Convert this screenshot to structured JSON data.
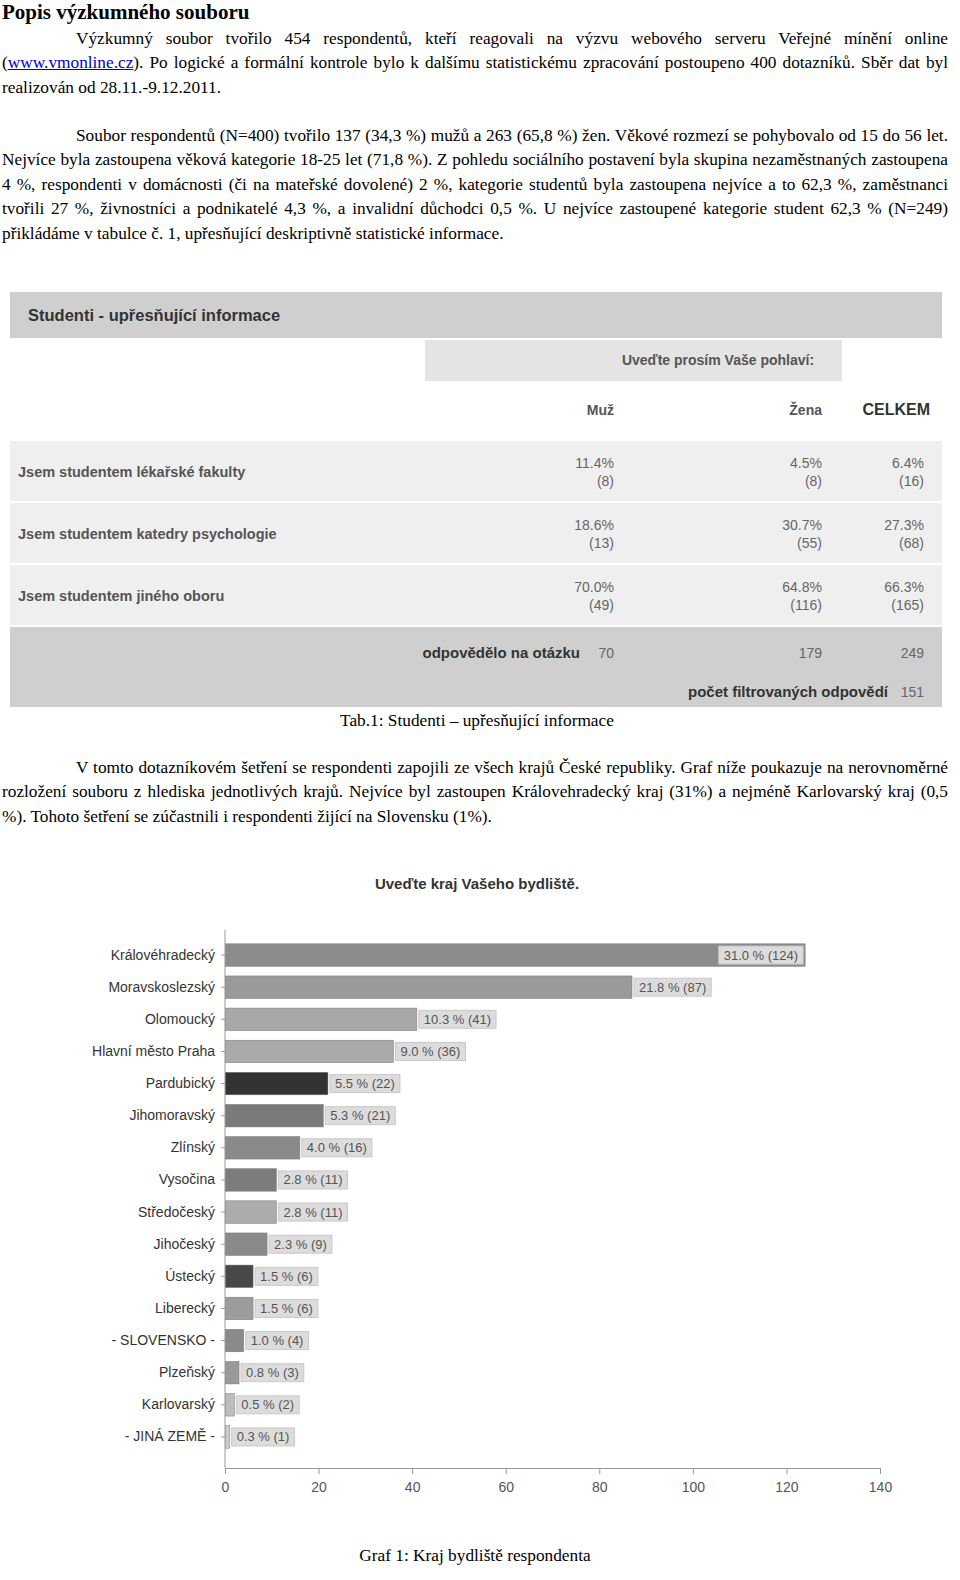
{
  "heading": "Popis výzkumného souboru",
  "paragraph_1": [
    "Výzkumný soubor tvořilo 454 respondentů, kteří reagovali na výzvu webového serveru Veřejné mínění online (",
    "www.vmonline.cz",
    "). Po logické a formální kontrole bylo k dalšímu statistickému zpracování postoupeno 400 dotazníků. Sběr dat byl realizován od 28.11.-9.12.2011."
  ],
  "paragraph_2": "Soubor respondentů (N=400) tvořilo 137 (34,3 %) mužů a 263 (65,8 %) žen. Věkové rozmezí se pohybovalo od 15 do 56 let. Nejvíce byla zastoupena věková kategorie 18-25 let (71,8 %). Z pohledu sociálního postavení byla skupina nezaměstnaných zastoupena 4 %, respondenti v domácnosti (či na mateřské dovolené) 2 %, kategorie studentů byla zastoupena nejvíce a to 62,3 %, zaměstnanci tvořili 27 %, živnostníci a podnikatelé 4,3 %, a invalidní důchodci 0,5 %. U nejvíce zastoupené kategorie student 62,3 % (N=249) přikládáme v tabulce č. 1, upřesňující deskriptivně statistické informace.",
  "table": {
    "title": "Studenti - upřesňující informace",
    "group_header": "Uveďte prosím Vaše pohlaví:",
    "columns": [
      "Muž",
      "Žena",
      "CELKEM"
    ],
    "rows": [
      {
        "label": "Jsem studentem lékařské fakulty",
        "cells": [
          [
            "11.4%",
            "(8)"
          ],
          [
            "4.5%",
            "(8)"
          ],
          [
            "6.4%",
            "(16)"
          ]
        ]
      },
      {
        "label": "Jsem studentem katedry psychologie",
        "cells": [
          [
            "18.6%",
            "(13)"
          ],
          [
            "30.7%",
            "(55)"
          ],
          [
            "27.3%",
            "(68)"
          ]
        ]
      },
      {
        "label": "Jsem studentem jiného oboru",
        "cells": [
          [
            "70.0%",
            "(49)"
          ],
          [
            "64.8%",
            "(116)"
          ],
          [
            "66.3%",
            "(165)"
          ]
        ]
      }
    ],
    "answered": {
      "label": "odpovědělo na otázku",
      "values": [
        "70",
        "179",
        "249"
      ]
    },
    "filtered": {
      "label": "počet filtrovaných odpovědí",
      "value": "151"
    }
  },
  "table_caption": "Tab.1: Studenti – upřesňující informace",
  "paragraph_3": "V tomto dotazníkovém šetření se respondenti zapojili ze všech krajů České republiky. Graf níže poukazuje na nerovnoměrné rozložení souboru z hlediska jednotlivých krajů. Nejvíce byl zastoupen Královehradecký kraj (31%) a nejméně Karlovarský kraj (0,5 %). Tohoto šetření se zúčastnili i respondenti žijící na Slovensku (1%).",
  "chart_data": {
    "type": "bar",
    "orientation": "horizontal",
    "title": "Uveďte kraj Vašeho bydliště.",
    "categories": [
      "Královéhradecký",
      "Moravskoslezský",
      "Olomoucký",
      "Hlavní město Praha",
      "Pardubický",
      "Jihomoravský",
      "Zlínský",
      "Vysočina",
      "Středočeský",
      "Jihočeský",
      "Ústecký",
      "Liberecký",
      "- SLOVENSKO -",
      "Plzeňský",
      "Karlovarský",
      "- JINÁ ZEMĚ -"
    ],
    "values": [
      124,
      87,
      41,
      36,
      22,
      21,
      16,
      11,
      11,
      9,
      6,
      6,
      4,
      3,
      2,
      1
    ],
    "value_labels": [
      "31.0 % (124)",
      "21.8 % (87)",
      "10.3 % (41)",
      "9.0 % (36)",
      "5.5 % (22)",
      "5.3 % (21)",
      "4.0 % (16)",
      "2.8 % (11)",
      "2.8 % (11)",
      "2.3 % (9)",
      "1.5 % (6)",
      "1.5 % (6)",
      "1.0 % (4)",
      "0.8 % (3)",
      "0.5 % (2)",
      "0.3 % (1)"
    ],
    "colors": [
      "#8c8c8c",
      "#9a9a9a",
      "#a8a8a8",
      "#aaaaaa",
      "#333333",
      "#7a7a7a",
      "#8a8a8a",
      "#7c7c7c",
      "#acacac",
      "#8a8a8a",
      "#484848",
      "#9c9c9c",
      "#8a8a8a",
      "#9a9a9a",
      "#bdbdbd",
      "#cccccc"
    ],
    "xlim": [
      0,
      140
    ],
    "xticks": [
      0,
      20,
      40,
      60,
      80,
      100,
      120,
      140
    ],
    "data_labels": true,
    "grid": false
  },
  "chart_caption": "Graf 1: Kraj bydliště respondenta"
}
